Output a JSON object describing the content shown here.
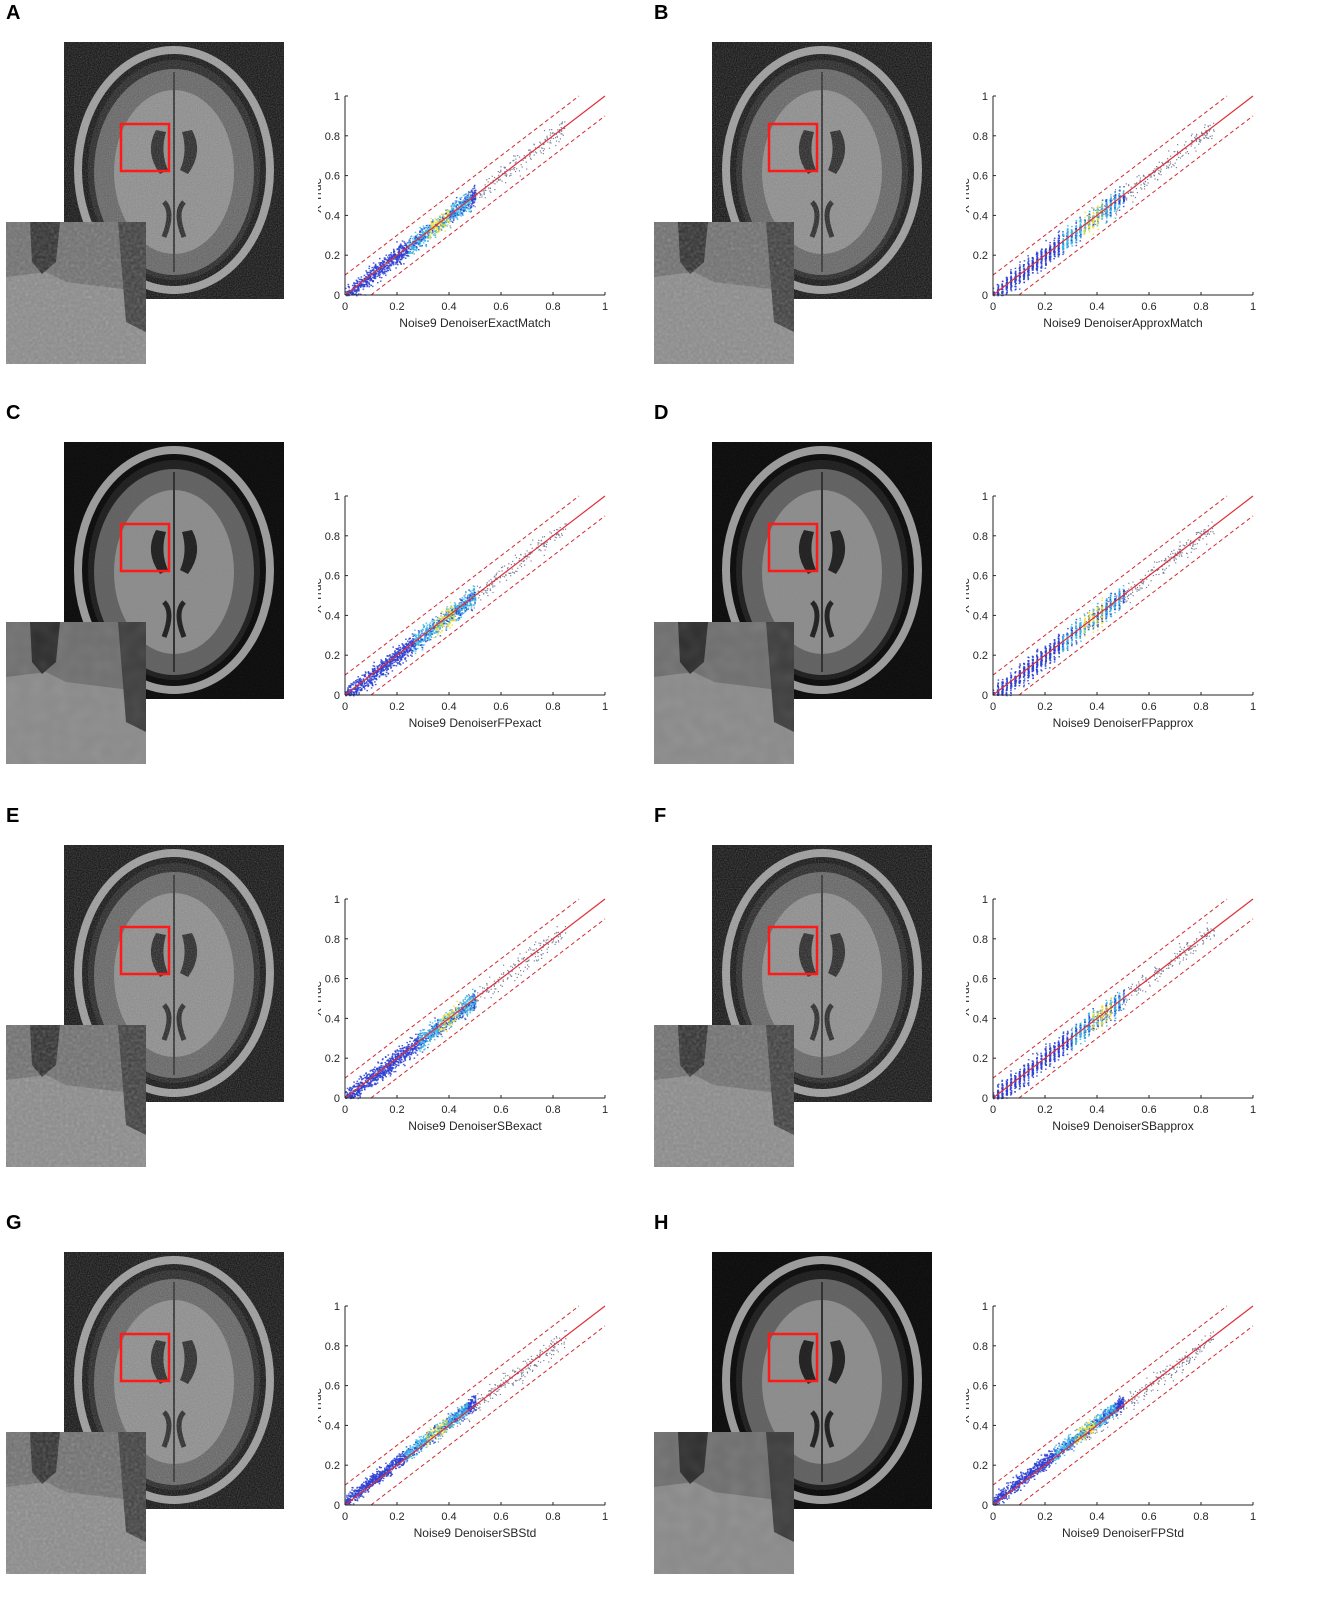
{
  "figure": {
    "panels": [
      {
        "letter": "A",
        "xlabel": "Noise9 DenoiserExactMatch",
        "ylabel": "X True",
        "denoised": false,
        "style": "exact"
      },
      {
        "letter": "B",
        "xlabel": "Noise9 DenoiserApproxMatch",
        "ylabel": "X True",
        "denoised": false,
        "style": "approx"
      },
      {
        "letter": "C",
        "xlabel": "Noise9 DenoiserFPexact",
        "ylabel": "X True",
        "denoised": true,
        "style": "exact"
      },
      {
        "letter": "D",
        "xlabel": "Noise9 DenoiserFPapprox",
        "ylabel": "X True",
        "denoised": true,
        "style": "approx"
      },
      {
        "letter": "E",
        "xlabel": "Noise9 DenoiserSBexact",
        "ylabel": "X True",
        "denoised": false,
        "style": "exact"
      },
      {
        "letter": "F",
        "xlabel": "Noise9 DenoiserSBapprox",
        "ylabel": "X True",
        "denoised": false,
        "style": "approx"
      },
      {
        "letter": "G",
        "xlabel": "Noise9 DenoiserSBStd",
        "ylabel": "X True",
        "denoised": false,
        "style": "std"
      },
      {
        "letter": "H",
        "xlabel": "Noise9 DenoiserFPStd",
        "ylabel": "X True",
        "denoised": true,
        "style": "std"
      }
    ]
  },
  "colors": {
    "identity_line": "#e0303a",
    "bound_lines": "#d12a34",
    "roi_box": "#ff1a1a",
    "density_low": "#2b3fd4",
    "density_mid": "#3ab6e6",
    "density_high": "#f2e12a"
  },
  "chart_data": [
    {
      "type": "scatter",
      "panel": "A",
      "xlabel": "Noise9 DenoiserExactMatch",
      "ylabel": "X True",
      "xlim": [
        0,
        1
      ],
      "ylim": [
        0,
        1
      ],
      "xticks": [
        "0",
        "0.2",
        "0.4",
        "0.6",
        "0.8",
        "1"
      ],
      "yticks": [
        "0",
        "0.2",
        "0.4",
        "0.6",
        "0.8",
        "1"
      ],
      "identity_line": {
        "x": [
          0,
          1
        ],
        "y": [
          0,
          1
        ]
      },
      "upper_bound": {
        "x": [
          0,
          0.9
        ],
        "y": [
          0.1,
          1
        ]
      },
      "lower_bound": {
        "x": [
          0.1,
          1
        ],
        "y": [
          0,
          0.9
        ]
      },
      "point_x_range": [
        0,
        0.5
      ],
      "point_y_range": [
        0,
        0.6
      ],
      "density_peak_x": 0.36
    },
    {
      "type": "scatter",
      "panel": "B",
      "xlabel": "Noise9 DenoiserApproxMatch",
      "ylabel": "X True",
      "xlim": [
        0,
        1
      ],
      "ylim": [
        0,
        1
      ],
      "xticks": [
        "0",
        "0.2",
        "0.4",
        "0.6",
        "0.8",
        "1"
      ],
      "yticks": [
        "0",
        "0.2",
        "0.4",
        "0.6",
        "0.8",
        "1"
      ],
      "identity_line": {
        "x": [
          0,
          1
        ],
        "y": [
          0,
          1
        ]
      },
      "upper_bound": {
        "x": [
          0,
          0.9
        ],
        "y": [
          0.1,
          1
        ]
      },
      "lower_bound": {
        "x": [
          0.1,
          1
        ],
        "y": [
          0,
          0.9
        ]
      },
      "point_x_range": [
        0,
        0.5
      ],
      "point_y_range": [
        0,
        0.6
      ],
      "density_peak_x": 0.38
    },
    {
      "type": "scatter",
      "panel": "C",
      "xlabel": "Noise9 DenoiserFPexact",
      "ylabel": "X True",
      "xlim": [
        0,
        1
      ],
      "ylim": [
        0,
        1
      ],
      "xticks": [
        "0",
        "0.2",
        "0.4",
        "0.6",
        "0.8",
        "1"
      ],
      "yticks": [
        "0",
        "0.2",
        "0.4",
        "0.6",
        "0.8",
        "1"
      ],
      "identity_line": {
        "x": [
          0,
          1
        ],
        "y": [
          0,
          1
        ]
      },
      "upper_bound": {
        "x": [
          0,
          0.9
        ],
        "y": [
          0.1,
          1
        ]
      },
      "lower_bound": {
        "x": [
          0.1,
          1
        ],
        "y": [
          0,
          0.9
        ]
      },
      "point_x_range": [
        0,
        0.5
      ],
      "point_y_range": [
        0,
        0.55
      ],
      "density_peak_x": 0.38
    },
    {
      "type": "scatter",
      "panel": "D",
      "xlabel": "Noise9 DenoiserFPapprox",
      "ylabel": "X True",
      "xlim": [
        0,
        1
      ],
      "ylim": [
        0,
        1
      ],
      "xticks": [
        "0",
        "0.2",
        "0.4",
        "0.6",
        "0.8",
        "1"
      ],
      "yticks": [
        "0",
        "0.2",
        "0.4",
        "0.6",
        "0.8",
        "1"
      ],
      "identity_line": {
        "x": [
          0,
          1
        ],
        "y": [
          0,
          1
        ]
      },
      "upper_bound": {
        "x": [
          0,
          0.9
        ],
        "y": [
          0.1,
          1
        ]
      },
      "lower_bound": {
        "x": [
          0.1,
          1
        ],
        "y": [
          0,
          0.9
        ]
      },
      "point_x_range": [
        0,
        0.5
      ],
      "point_y_range": [
        0,
        0.55
      ],
      "density_peak_x": 0.38
    },
    {
      "type": "scatter",
      "panel": "E",
      "xlabel": "Noise9 DenoiserSBexact",
      "ylabel": "X True",
      "xlim": [
        0,
        1
      ],
      "ylim": [
        0,
        1
      ],
      "xticks": [
        "0",
        "0.2",
        "0.4",
        "0.6",
        "0.8",
        "1"
      ],
      "yticks": [
        "0",
        "0.2",
        "0.4",
        "0.6",
        "0.8",
        "1"
      ],
      "identity_line": {
        "x": [
          0,
          1
        ],
        "y": [
          0,
          1
        ]
      },
      "upper_bound": {
        "x": [
          0,
          0.9
        ],
        "y": [
          0.1,
          1
        ]
      },
      "lower_bound": {
        "x": [
          0.1,
          1
        ],
        "y": [
          0,
          0.9
        ]
      },
      "point_x_range": [
        0,
        0.5
      ],
      "point_y_range": [
        0,
        0.6
      ],
      "density_peak_x": 0.4
    },
    {
      "type": "scatter",
      "panel": "F",
      "xlabel": "Noise9 DenoiserSBapprox",
      "ylabel": "X True",
      "xlim": [
        0,
        1
      ],
      "ylim": [
        0,
        1
      ],
      "xticks": [
        "0",
        "0.2",
        "0.4",
        "0.6",
        "0.8",
        "1"
      ],
      "yticks": [
        "0",
        "0.2",
        "0.4",
        "0.6",
        "0.8",
        "1"
      ],
      "identity_line": {
        "x": [
          0,
          1
        ],
        "y": [
          0,
          1
        ]
      },
      "upper_bound": {
        "x": [
          0,
          0.9
        ],
        "y": [
          0.1,
          1
        ]
      },
      "lower_bound": {
        "x": [
          0.1,
          1
        ],
        "y": [
          0,
          0.9
        ]
      },
      "point_x_range": [
        0,
        0.5
      ],
      "point_y_range": [
        0,
        0.6
      ],
      "density_peak_x": 0.42
    },
    {
      "type": "scatter",
      "panel": "G",
      "xlabel": "Noise9 DenoiserSBStd",
      "ylabel": "X True",
      "xlim": [
        0,
        1
      ],
      "ylim": [
        0,
        1
      ],
      "xticks": [
        "0",
        "0.2",
        "0.4",
        "0.6",
        "0.8",
        "1"
      ],
      "yticks": [
        "0",
        "0.2",
        "0.4",
        "0.6",
        "0.8",
        "1"
      ],
      "identity_line": {
        "x": [
          0,
          1
        ],
        "y": [
          0,
          1
        ]
      },
      "upper_bound": {
        "x": [
          0,
          0.9
        ],
        "y": [
          0.1,
          1
        ]
      },
      "lower_bound": {
        "x": [
          0.1,
          1
        ],
        "y": [
          0,
          0.9
        ]
      },
      "point_x_range": [
        0,
        0.5
      ],
      "point_y_range": [
        0,
        0.55
      ],
      "density_peak_x": 0.35
    },
    {
      "type": "scatter",
      "panel": "H",
      "xlabel": "Noise9 DenoiserFPStd",
      "ylabel": "X True",
      "xlim": [
        0,
        1
      ],
      "ylim": [
        0,
        1
      ],
      "xticks": [
        "0",
        "0.2",
        "0.4",
        "0.6",
        "0.8",
        "1"
      ],
      "yticks": [
        "0",
        "0.2",
        "0.4",
        "0.6",
        "0.8",
        "1"
      ],
      "identity_line": {
        "x": [
          0,
          1
        ],
        "y": [
          0,
          1
        ]
      },
      "upper_bound": {
        "x": [
          0,
          0.9
        ],
        "y": [
          0.1,
          1
        ]
      },
      "lower_bound": {
        "x": [
          0.1,
          1
        ],
        "y": [
          0,
          0.9
        ]
      },
      "point_x_range": [
        0,
        0.5
      ],
      "point_y_range": [
        0,
        0.55
      ],
      "density_peak_x": 0.35
    }
  ]
}
